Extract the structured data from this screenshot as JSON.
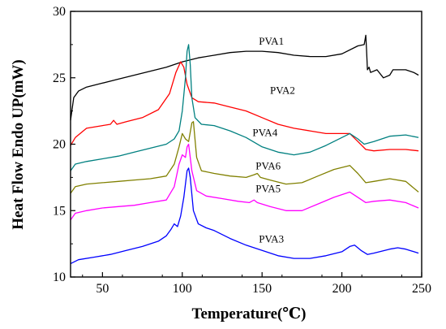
{
  "chart_data": {
    "type": "line",
    "title": "",
    "xlabel": "Temperature(℃)",
    "ylabel": "Heat Flow Endo UP(mW)",
    "xlim": [
      30,
      250
    ],
    "ylim": [
      10,
      30
    ],
    "xticks": [
      50,
      100,
      150,
      200,
      250
    ],
    "yticks": [
      10,
      15,
      20,
      25,
      30
    ],
    "grid": false,
    "legend": "inline-labels",
    "series": [
      {
        "name": "PVA1",
        "color": "#000000",
        "label_at": [
          148,
          27.5
        ],
        "points": [
          [
            30,
            21.8
          ],
          [
            32,
            23.5
          ],
          [
            35,
            24.0
          ],
          [
            40,
            24.3
          ],
          [
            50,
            24.6
          ],
          [
            60,
            24.9
          ],
          [
            70,
            25.2
          ],
          [
            80,
            25.5
          ],
          [
            90,
            25.8
          ],
          [
            100,
            26.2
          ],
          [
            110,
            26.5
          ],
          [
            120,
            26.7
          ],
          [
            130,
            26.9
          ],
          [
            140,
            27.0
          ],
          [
            150,
            27.0
          ],
          [
            160,
            26.9
          ],
          [
            170,
            26.7
          ],
          [
            180,
            26.6
          ],
          [
            190,
            26.6
          ],
          [
            200,
            26.8
          ],
          [
            210,
            27.4
          ],
          [
            214,
            27.5
          ],
          [
            215,
            28.2
          ],
          [
            215.5,
            27.0
          ],
          [
            216,
            25.6
          ],
          [
            217,
            25.8
          ],
          [
            218,
            25.4
          ],
          [
            222,
            25.6
          ],
          [
            226,
            25.0
          ],
          [
            230,
            25.2
          ],
          [
            232,
            25.6
          ],
          [
            240,
            25.6
          ],
          [
            245,
            25.4
          ],
          [
            248,
            25.2
          ]
        ]
      },
      {
        "name": "PVA2",
        "color": "#ff0000",
        "label_at": [
          155,
          23.8
        ],
        "points": [
          [
            30,
            19.9
          ],
          [
            33,
            20.5
          ],
          [
            40,
            21.2
          ],
          [
            50,
            21.4
          ],
          [
            55,
            21.5
          ],
          [
            57,
            21.8
          ],
          [
            59,
            21.5
          ],
          [
            65,
            21.7
          ],
          [
            75,
            22.0
          ],
          [
            85,
            22.6
          ],
          [
            92,
            23.8
          ],
          [
            96,
            25.4
          ],
          [
            99,
            26.2
          ],
          [
            101,
            25.8
          ],
          [
            103,
            24.5
          ],
          [
            106,
            23.5
          ],
          [
            110,
            23.2
          ],
          [
            120,
            23.1
          ],
          [
            130,
            22.8
          ],
          [
            140,
            22.5
          ],
          [
            150,
            22.0
          ],
          [
            160,
            21.5
          ],
          [
            170,
            21.2
          ],
          [
            180,
            21.0
          ],
          [
            190,
            20.8
          ],
          [
            200,
            20.8
          ],
          [
            205,
            20.8
          ],
          [
            210,
            20.2
          ],
          [
            215,
            19.6
          ],
          [
            220,
            19.5
          ],
          [
            230,
            19.6
          ],
          [
            240,
            19.6
          ],
          [
            248,
            19.5
          ]
        ]
      },
      {
        "name": "PVA4",
        "color": "#008080",
        "label_at": [
          144,
          20.6
        ],
        "points": [
          [
            30,
            18.0
          ],
          [
            33,
            18.5
          ],
          [
            40,
            18.7
          ],
          [
            50,
            18.9
          ],
          [
            60,
            19.1
          ],
          [
            70,
            19.4
          ],
          [
            80,
            19.7
          ],
          [
            90,
            20.0
          ],
          [
            95,
            20.4
          ],
          [
            98,
            21.0
          ],
          [
            100,
            22.5
          ],
          [
            102,
            25.0
          ],
          [
            103,
            27.0
          ],
          [
            104,
            27.5
          ],
          [
            105,
            26.0
          ],
          [
            106,
            23.5
          ],
          [
            108,
            22.0
          ],
          [
            112,
            21.5
          ],
          [
            120,
            21.4
          ],
          [
            130,
            21.0
          ],
          [
            140,
            20.5
          ],
          [
            150,
            19.8
          ],
          [
            160,
            19.4
          ],
          [
            170,
            19.2
          ],
          [
            180,
            19.4
          ],
          [
            190,
            19.9
          ],
          [
            200,
            20.5
          ],
          [
            205,
            20.8
          ],
          [
            210,
            20.4
          ],
          [
            214,
            20.0
          ],
          [
            220,
            20.2
          ],
          [
            230,
            20.6
          ],
          [
            240,
            20.7
          ],
          [
            248,
            20.5
          ]
        ]
      },
      {
        "name": "PVA6",
        "color": "#808000",
        "label_at": [
          146,
          18.1
        ],
        "points": [
          [
            30,
            16.3
          ],
          [
            33,
            16.8
          ],
          [
            40,
            17.0
          ],
          [
            50,
            17.1
          ],
          [
            60,
            17.2
          ],
          [
            70,
            17.3
          ],
          [
            80,
            17.4
          ],
          [
            90,
            17.6
          ],
          [
            95,
            18.5
          ],
          [
            98,
            19.8
          ],
          [
            100,
            20.8
          ],
          [
            102,
            20.4
          ],
          [
            104,
            20.2
          ],
          [
            106,
            21.6
          ],
          [
            107,
            21.7
          ],
          [
            109,
            19.0
          ],
          [
            112,
            18.0
          ],
          [
            120,
            17.8
          ],
          [
            130,
            17.6
          ],
          [
            140,
            17.5
          ],
          [
            145,
            17.7
          ],
          [
            147,
            17.8
          ],
          [
            149,
            17.5
          ],
          [
            155,
            17.3
          ],
          [
            165,
            17.0
          ],
          [
            175,
            17.1
          ],
          [
            185,
            17.6
          ],
          [
            195,
            18.1
          ],
          [
            205,
            18.4
          ],
          [
            210,
            17.8
          ],
          [
            215,
            17.1
          ],
          [
            220,
            17.2
          ],
          [
            230,
            17.4
          ],
          [
            240,
            17.2
          ],
          [
            248,
            16.4
          ]
        ]
      },
      {
        "name": "PVA5",
        "color": "#ff00ff",
        "label_at": [
          146,
          16.4
        ],
        "points": [
          [
            30,
            14.3
          ],
          [
            33,
            14.8
          ],
          [
            40,
            15.0
          ],
          [
            50,
            15.2
          ],
          [
            60,
            15.3
          ],
          [
            70,
            15.4
          ],
          [
            80,
            15.6
          ],
          [
            90,
            15.8
          ],
          [
            95,
            16.8
          ],
          [
            98,
            18.5
          ],
          [
            100,
            19.2
          ],
          [
            102,
            19.0
          ],
          [
            103,
            19.8
          ],
          [
            104,
            20.0
          ],
          [
            106,
            18.0
          ],
          [
            109,
            16.5
          ],
          [
            115,
            16.1
          ],
          [
            125,
            15.9
          ],
          [
            135,
            15.7
          ],
          [
            142,
            15.6
          ],
          [
            145,
            15.8
          ],
          [
            147,
            15.6
          ],
          [
            155,
            15.3
          ],
          [
            165,
            15.0
          ],
          [
            175,
            15.0
          ],
          [
            185,
            15.5
          ],
          [
            195,
            16.0
          ],
          [
            205,
            16.4
          ],
          [
            210,
            16.0
          ],
          [
            215,
            15.6
          ],
          [
            220,
            15.7
          ],
          [
            230,
            15.8
          ],
          [
            240,
            15.6
          ],
          [
            248,
            15.2
          ]
        ]
      },
      {
        "name": "PVA3",
        "color": "#0000ff",
        "label_at": [
          148,
          12.6
        ],
        "points": [
          [
            30,
            11.0
          ],
          [
            35,
            11.3
          ],
          [
            45,
            11.5
          ],
          [
            55,
            11.7
          ],
          [
            65,
            12.0
          ],
          [
            75,
            12.3
          ],
          [
            85,
            12.7
          ],
          [
            90,
            13.1
          ],
          [
            93,
            13.6
          ],
          [
            95,
            14.0
          ],
          [
            97,
            13.8
          ],
          [
            99,
            14.6
          ],
          [
            101,
            16.0
          ],
          [
            103,
            18.0
          ],
          [
            104,
            18.2
          ],
          [
            105,
            17.5
          ],
          [
            107,
            15.0
          ],
          [
            110,
            14.0
          ],
          [
            115,
            13.7
          ],
          [
            120,
            13.5
          ],
          [
            130,
            12.9
          ],
          [
            140,
            12.4
          ],
          [
            150,
            12.0
          ],
          [
            160,
            11.6
          ],
          [
            170,
            11.4
          ],
          [
            180,
            11.4
          ],
          [
            190,
            11.6
          ],
          [
            200,
            11.9
          ],
          [
            205,
            12.3
          ],
          [
            208,
            12.4
          ],
          [
            212,
            12.0
          ],
          [
            216,
            11.7
          ],
          [
            220,
            11.8
          ],
          [
            230,
            12.1
          ],
          [
            235,
            12.2
          ],
          [
            240,
            12.1
          ],
          [
            248,
            11.8
          ]
        ]
      }
    ]
  }
}
